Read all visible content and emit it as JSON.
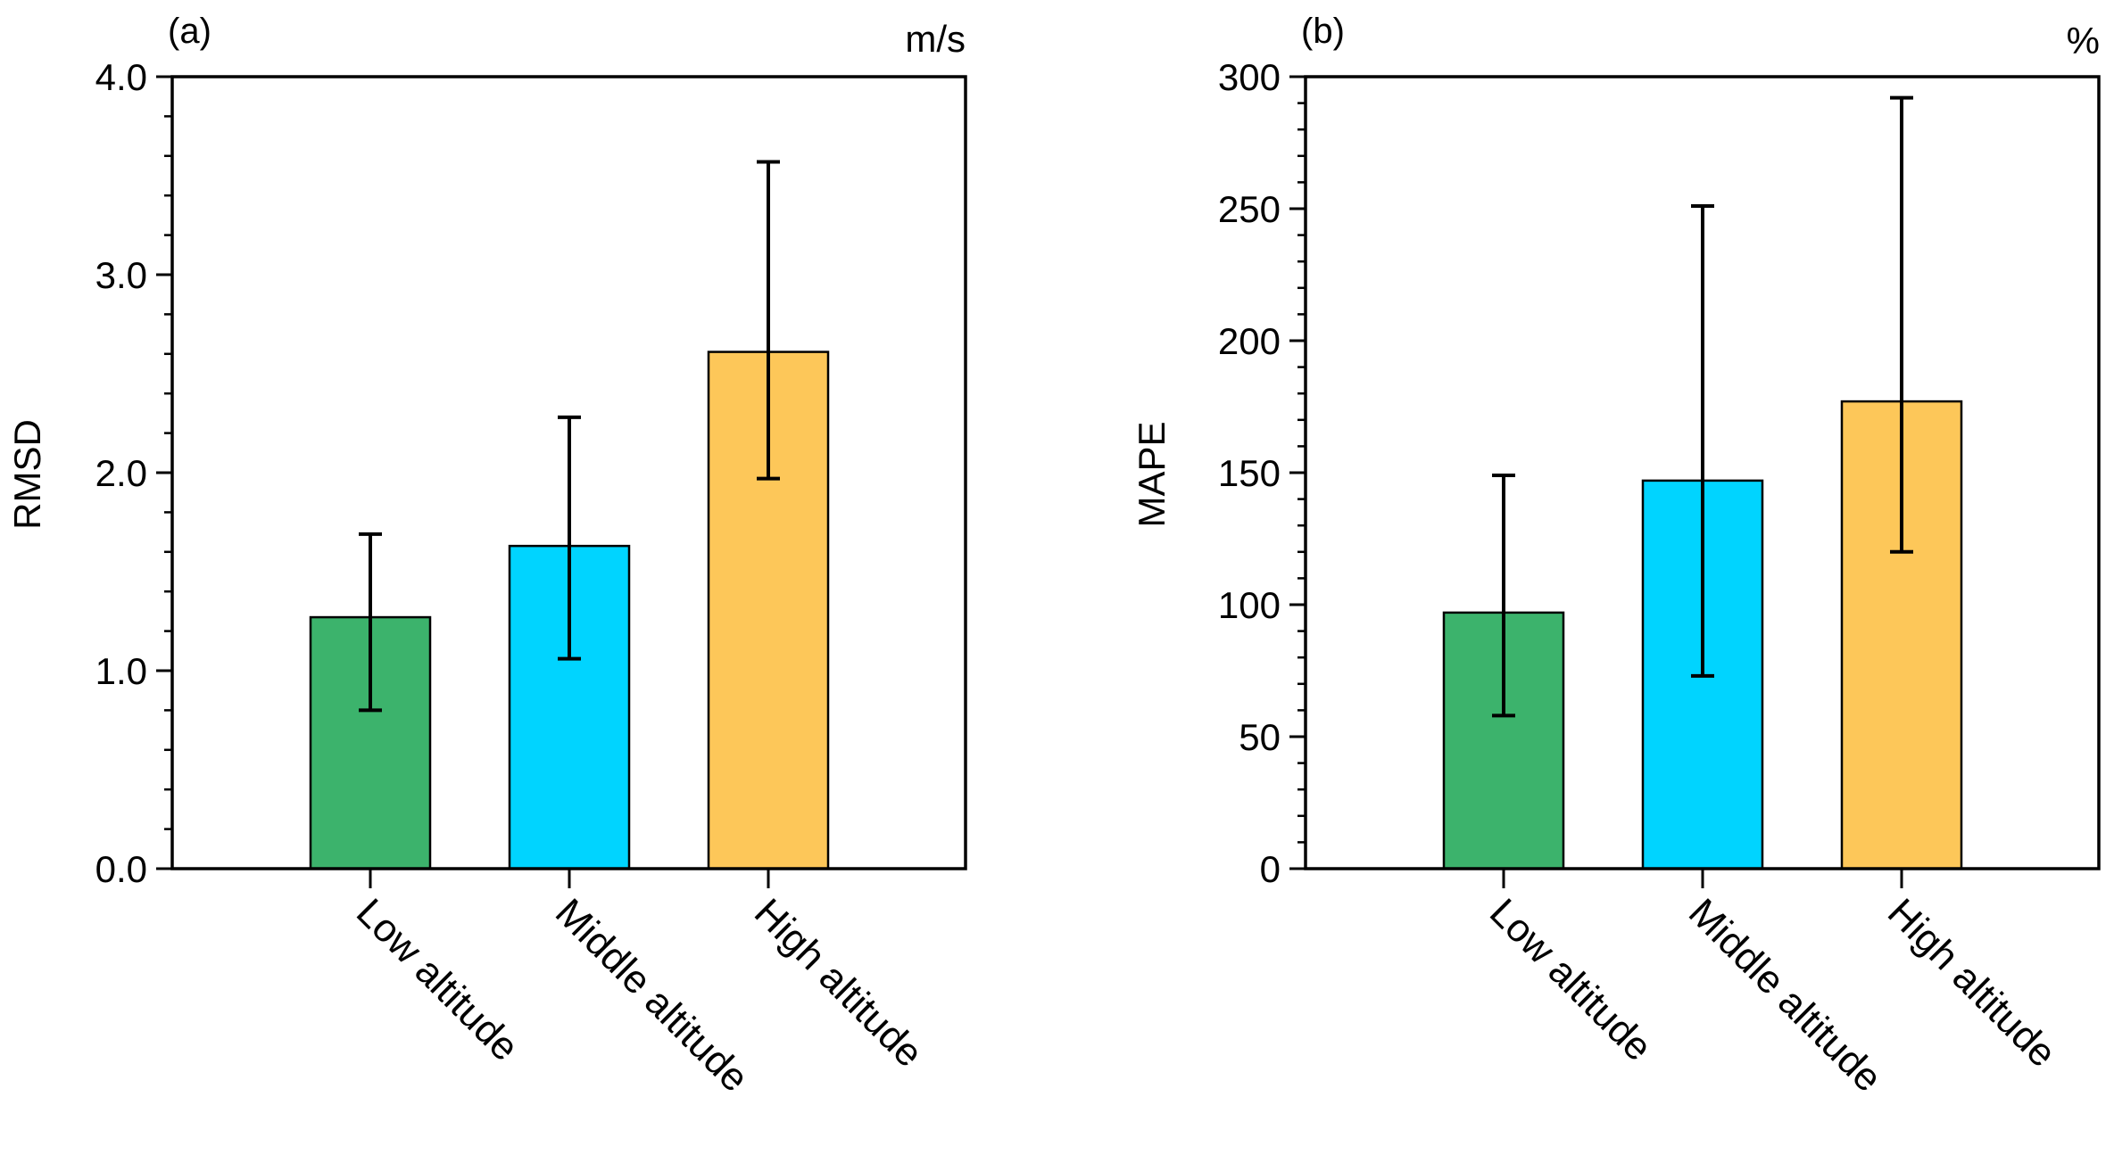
{
  "chart_data": [
    {
      "type": "bar",
      "panel_label": "(a)",
      "unit": "m/s",
      "title": "",
      "xlabel": "",
      "ylabel": "RMSD",
      "ylim": [
        0,
        4
      ],
      "yticks": [
        0,
        1,
        2,
        3,
        4
      ],
      "ytick_labels": [
        "0.0",
        "1.0",
        "2.0",
        "3.0",
        "4.0"
      ],
      "yminor_step": 0.2,
      "categories": [
        "Low altitude",
        "Middle altitude",
        "High altitude"
      ],
      "values": [
        1.27,
        1.63,
        2.61
      ],
      "error_low": [
        0.8,
        1.06,
        1.97
      ],
      "error_high": [
        1.69,
        2.28,
        3.57
      ],
      "colors": [
        "#3cb36c",
        "#00d4ff",
        "#fdc759"
      ],
      "grid": false
    },
    {
      "type": "bar",
      "panel_label": "(b)",
      "unit": "%",
      "title": "",
      "xlabel": "",
      "ylabel": "MAPE",
      "ylim": [
        0,
        300
      ],
      "yticks": [
        0,
        50,
        100,
        150,
        200,
        250,
        300
      ],
      "ytick_labels": [
        "0",
        "50",
        "100",
        "150",
        "200",
        "250",
        "300"
      ],
      "yminor_step": 10,
      "categories": [
        "Low altitude",
        "Middle altitude",
        "High altitude"
      ],
      "values": [
        97,
        147,
        177
      ],
      "error_low": [
        58,
        73,
        120
      ],
      "error_high": [
        149,
        251,
        292
      ],
      "colors": [
        "#3cb36c",
        "#00d4ff",
        "#fdc759"
      ],
      "grid": false
    }
  ]
}
